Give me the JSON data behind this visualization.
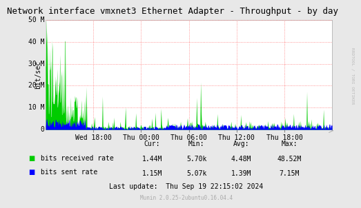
{
  "title": "Network interface vmxnet3 Ethernet Adapter - Throughput - by day",
  "ylabel": "bit/sec",
  "right_label": "RRDTOOL / TOBI OETIKER",
  "background_color": "#e8e8e8",
  "plot_bg_color": "#ffffff",
  "grid_color": "#ff6666",
  "ylim": [
    0,
    50000000
  ],
  "yticks": [
    0,
    10000000,
    20000000,
    30000000,
    40000000,
    50000000
  ],
  "ytick_labels": [
    "0",
    "10 M",
    "20 M",
    "30 M",
    "40 M",
    "50 M"
  ],
  "xtick_labels": [
    "Wed 18:00",
    "Thu 00:00",
    "Thu 06:00",
    "Thu 12:00",
    "Thu 18:00"
  ],
  "green_color": "#00cc00",
  "blue_color": "#0000ff",
  "legend": [
    {
      "label": "bits received rate",
      "color": "#00cc00"
    },
    {
      "label": "bits sent rate",
      "color": "#0000ff"
    }
  ],
  "stats_headers": [
    "Cur:",
    "Min:",
    "Avg:",
    "Max:"
  ],
  "stats_received": [
    "1.44M",
    "5.70k",
    "4.48M",
    "48.52M"
  ],
  "stats_sent": [
    "1.15M",
    "5.07k",
    "1.39M",
    "7.15M"
  ],
  "last_update": "Last update:  Thu Sep 19 22:15:02 2024",
  "munin_version": "Munin 2.0.25-2ubuntu0.16.04.4",
  "title_fontsize": 9,
  "axis_fontsize": 7,
  "stats_fontsize": 7,
  "n_points": 500
}
